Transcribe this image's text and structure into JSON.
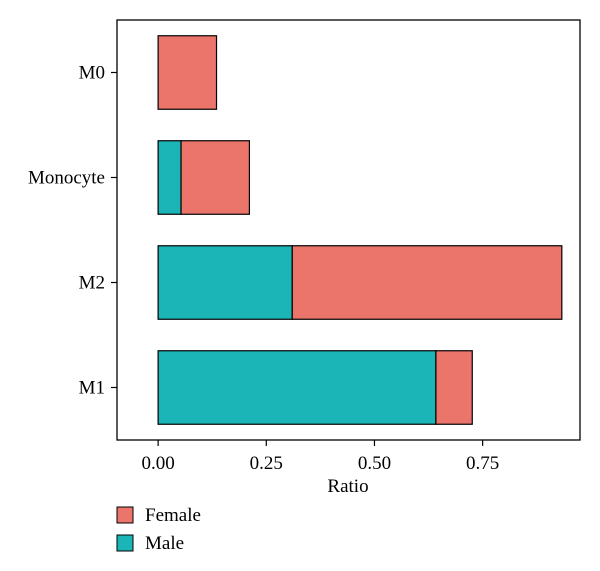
{
  "chart_data": {
    "type": "bar",
    "orientation": "horizontal",
    "stacked": true,
    "categories": [
      "M0",
      "Monocyte",
      "M2",
      "M1"
    ],
    "series": [
      {
        "name": "Male",
        "color": "#1cb5b7",
        "values": [
          0.0,
          0.053,
          0.31,
          0.642
        ]
      },
      {
        "name": "Female",
        "color": "#ec756b",
        "values": [
          0.135,
          0.158,
          0.623,
          0.084
        ]
      }
    ],
    "xlabel": "Ratio",
    "ylabel": "",
    "title": "",
    "xlim": [
      -0.095,
      0.975
    ],
    "xticks": [
      0.0,
      0.25,
      0.5,
      0.75
    ],
    "xtick_labels": [
      "0.00",
      "0.25",
      "0.50",
      "0.75"
    ],
    "grid": false,
    "legend": {
      "position": "bottom-left",
      "entries": [
        {
          "label": "Female",
          "color": "#ec756b"
        },
        {
          "label": "Male",
          "color": "#1cb5b7"
        }
      ]
    }
  }
}
